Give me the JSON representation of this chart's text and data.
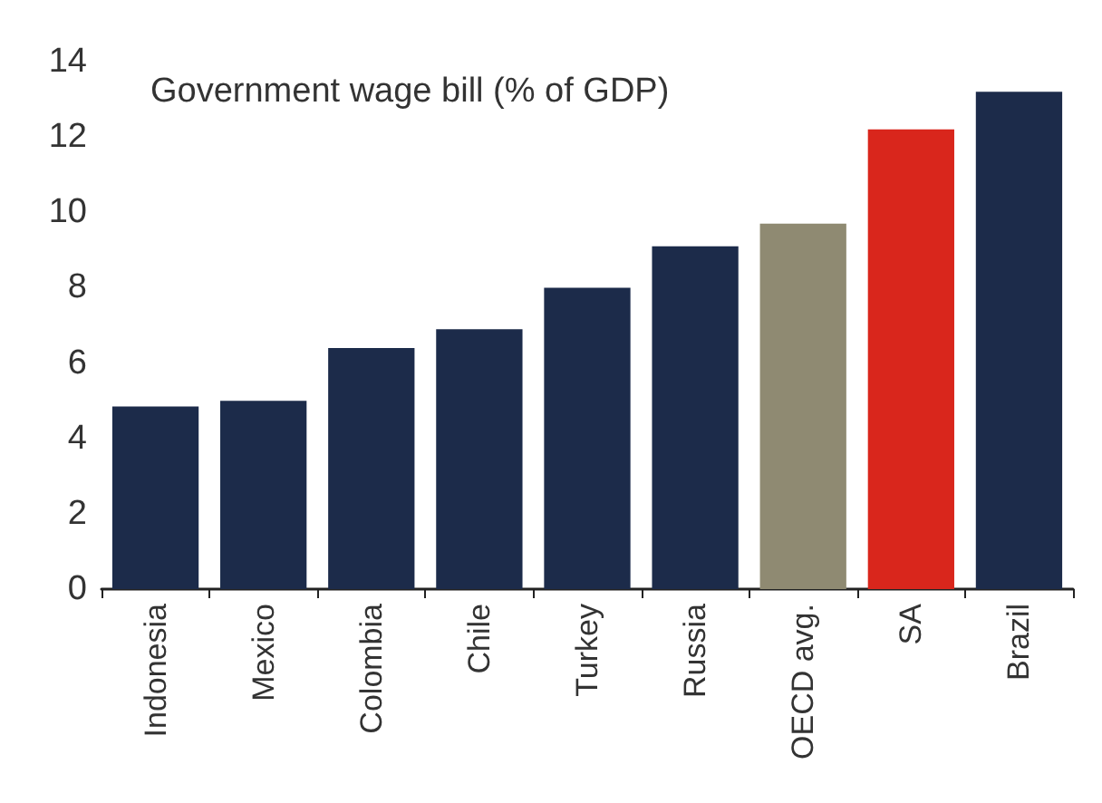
{
  "chart_data": {
    "type": "bar",
    "title": "Government wage bill (% of GDP)",
    "categories": [
      "Indonesia",
      "Mexico",
      "Colombia",
      "Chile",
      "Turkey",
      "Russia",
      "OECD avg.",
      "SA",
      "Brazil"
    ],
    "values": [
      4.85,
      5.0,
      6.4,
      6.9,
      8.0,
      9.1,
      9.7,
      12.2,
      13.2
    ],
    "colors": [
      "#1c2b4a",
      "#1c2b4a",
      "#1c2b4a",
      "#1c2b4a",
      "#1c2b4a",
      "#1c2b4a",
      "#8f8a72",
      "#d9261c",
      "#1c2b4a"
    ],
    "ylim": [
      0,
      14
    ],
    "yticks": [
      0,
      2,
      4,
      6,
      8,
      10,
      12,
      14
    ],
    "grid": false
  }
}
